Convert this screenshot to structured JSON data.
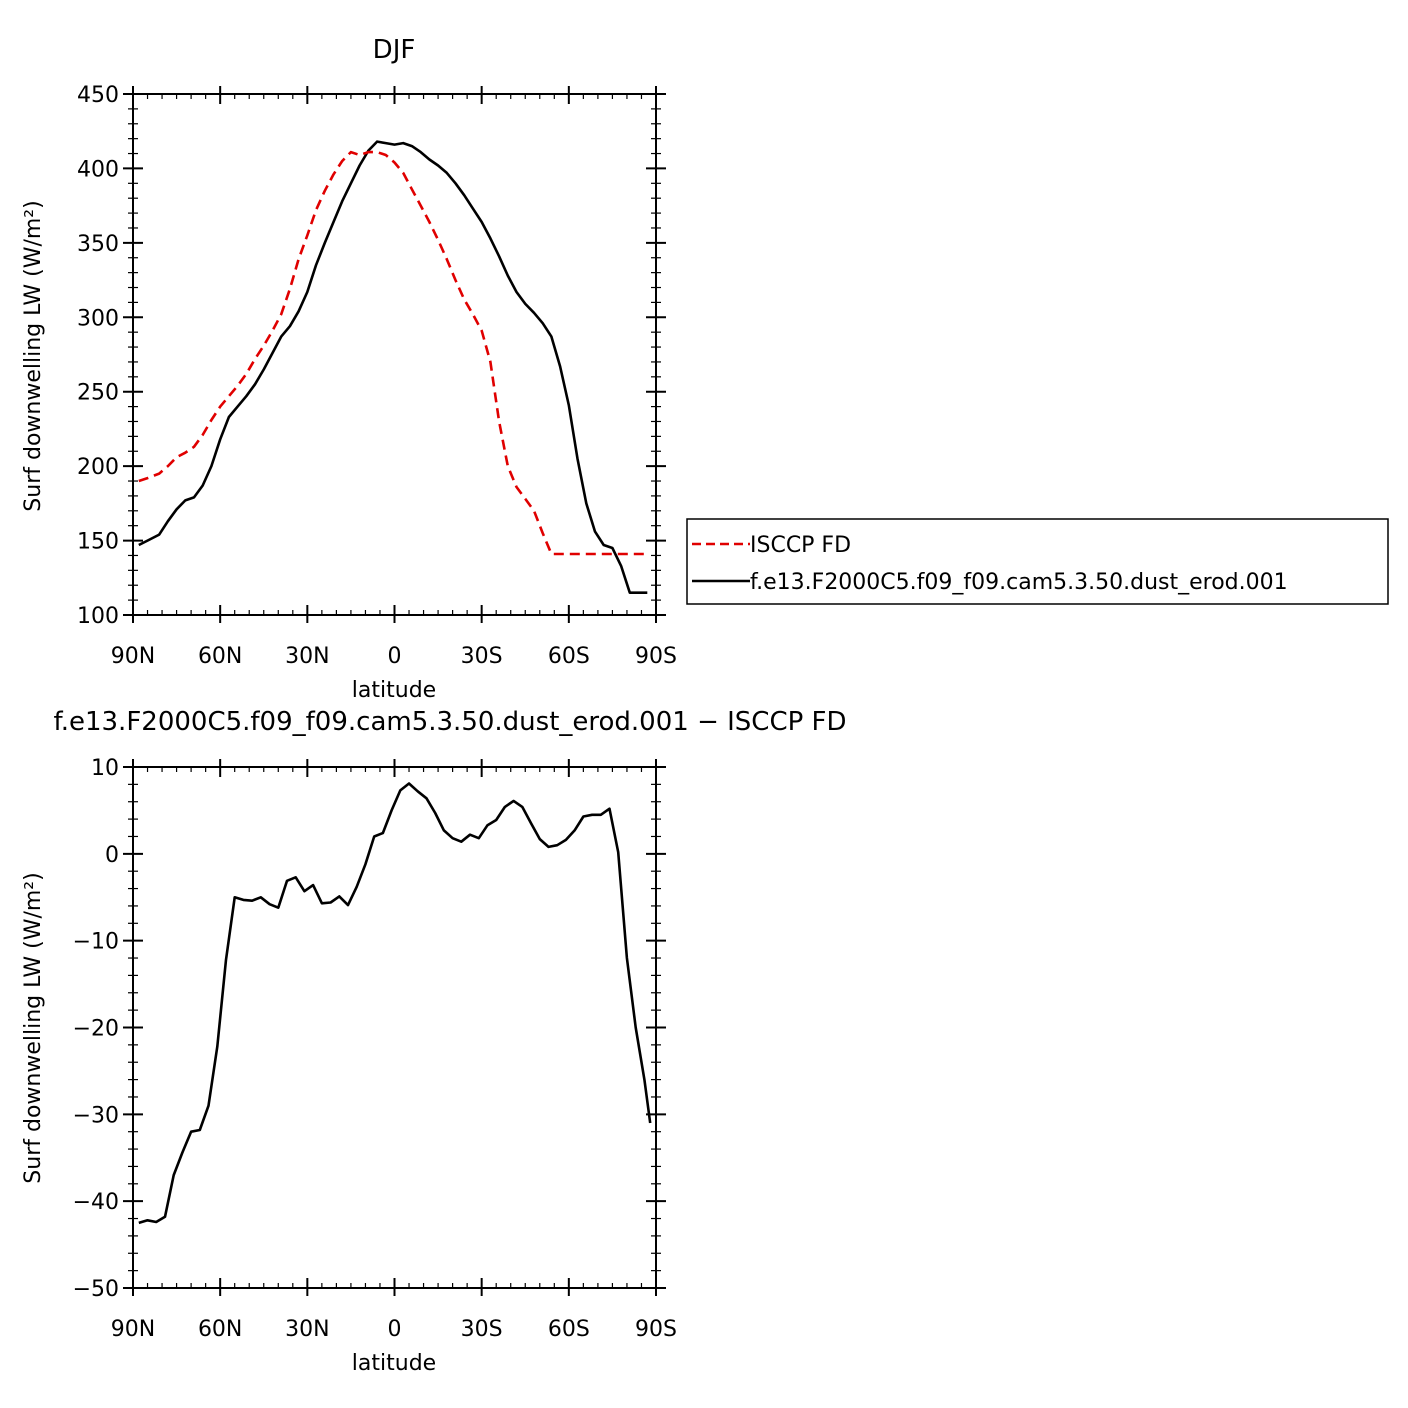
{
  "chart_data": [
    {
      "type": "line",
      "title": "DJF",
      "xlabel": "latitude",
      "ylabel": "Surf downwelling LW (W/m²)",
      "xlim": [
        -90,
        90
      ],
      "ylim": [
        100,
        450
      ],
      "x_ticks": [
        -90,
        -60,
        -30,
        0,
        30,
        60,
        90
      ],
      "x_tick_labels": [
        "90N",
        "60N",
        "30N",
        "0",
        "30S",
        "60S",
        "90S"
      ],
      "y_ticks": [
        100,
        150,
        200,
        250,
        300,
        350,
        400,
        450
      ],
      "y_tick_labels": [
        "100",
        "150",
        "200",
        "250",
        "300",
        "350",
        "400",
        "450"
      ],
      "legend_position": "right",
      "x": [
        -88,
        -85,
        -81,
        -78,
        -75,
        -72,
        -69,
        -66,
        -63,
        -60,
        -57,
        -54,
        -51,
        -48,
        -45,
        -42,
        -39,
        -36,
        -33,
        -30,
        -27,
        -24,
        -21,
        -18,
        -15,
        -12,
        -9,
        -6,
        -3,
        0,
        3,
        6,
        9,
        12,
        15,
        18,
        21,
        24,
        27,
        30,
        33,
        36,
        39,
        42,
        45,
        48,
        51,
        54,
        57,
        60,
        63,
        66,
        69,
        72,
        75,
        78,
        81,
        84,
        87,
        88
      ],
      "series": [
        {
          "name": "ISCCP FD",
          "color": "#e00000",
          "dash": "dashed",
          "values": [
            190,
            192,
            195,
            200,
            206,
            209,
            213,
            221,
            231,
            240,
            247,
            254,
            262,
            272,
            281,
            291,
            302,
            319,
            339,
            355,
            372,
            385,
            396,
            405,
            411,
            409,
            411,
            411,
            409,
            404,
            397,
            386,
            375,
            364,
            352,
            339,
            325,
            312,
            302,
            291,
            270,
            230,
            200,
            186,
            178,
            170,
            155,
            141,
            141,
            141,
            141,
            141,
            141,
            141,
            141,
            141,
            141,
            141,
            141,
            141
          ]
        },
        {
          "name": "f.e13.F2000C5.f09_f09.cam5.3.50.dust_erod.001",
          "color": "#000000",
          "dash": "solid",
          "values": [
            147,
            150,
            154,
            163,
            171,
            177,
            179,
            187,
            200,
            218,
            233,
            240,
            247,
            255,
            265,
            276,
            287,
            294,
            304,
            317,
            335,
            350,
            364,
            378,
            390,
            402,
            412,
            418,
            417,
            416,
            417,
            415,
            411,
            406,
            402,
            397,
            390,
            382,
            373,
            364,
            353,
            341,
            328,
            317,
            309,
            303,
            296,
            287,
            267,
            241,
            205,
            175,
            156,
            147,
            145,
            133,
            115,
            115,
            115,
            115
          ]
        }
      ]
    },
    {
      "type": "line",
      "title": "f.e13.F2000C5.f09_f09.cam5.3.50.dust_erod.001 − ISCCP FD",
      "xlabel": "latitude",
      "ylabel": "Surf downwelling LW (W/m²)",
      "xlim": [
        -90,
        90
      ],
      "ylim": [
        -50,
        10
      ],
      "x_ticks": [
        -90,
        -60,
        -30,
        0,
        30,
        60,
        90
      ],
      "x_tick_labels": [
        "90N",
        "60N",
        "30N",
        "0",
        "30S",
        "60S",
        "90S"
      ],
      "y_ticks": [
        -50,
        -40,
        -30,
        -20,
        -10,
        0,
        10
      ],
      "y_tick_labels": [
        "−50",
        "−40",
        "−30",
        "−20",
        "−10",
        "0",
        "10"
      ],
      "x": [
        -88,
        -85,
        -82,
        -79,
        -76,
        -73,
        -70,
        -67,
        -64,
        -61,
        -58,
        -55,
        -52,
        -49,
        -46,
        -43,
        -40,
        -37,
        -34,
        -31,
        -28,
        -25,
        -22,
        -19,
        -16,
        -13,
        -10,
        -7,
        -4,
        -1,
        2,
        5,
        8,
        11,
        14,
        17,
        20,
        23,
        26,
        29,
        32,
        35,
        38,
        41,
        44,
        47,
        50,
        53,
        56,
        59,
        62,
        65,
        68,
        71,
        74,
        77,
        80,
        83,
        86,
        88
      ],
      "series": [
        {
          "name": "",
          "color": "#000000",
          "dash": "solid",
          "values": [
            -42.5,
            -42.2,
            -42.4,
            -41.8,
            -37,
            -34.4,
            -32,
            -31.8,
            -29,
            -22.2,
            -12.2,
            -5,
            -5.3,
            -5.4,
            -5,
            -5.8,
            -6.2,
            -3.1,
            -2.7,
            -4.3,
            -3.6,
            -5.7,
            -5.6,
            -4.9,
            -5.9,
            -3.8,
            -1.2,
            2,
            2.4,
            5,
            7.3,
            8.1,
            7.2,
            6.4,
            4.7,
            2.7,
            1.8,
            1.4,
            2.2,
            1.8,
            3.3,
            3.9,
            5.4,
            6.1,
            5.4,
            3.5,
            1.7,
            0.8,
            1,
            1.6,
            2.7,
            4.3,
            4.5,
            4.5,
            5.2,
            0.2,
            -12,
            -20,
            -26,
            -31
          ]
        }
      ]
    }
  ]
}
